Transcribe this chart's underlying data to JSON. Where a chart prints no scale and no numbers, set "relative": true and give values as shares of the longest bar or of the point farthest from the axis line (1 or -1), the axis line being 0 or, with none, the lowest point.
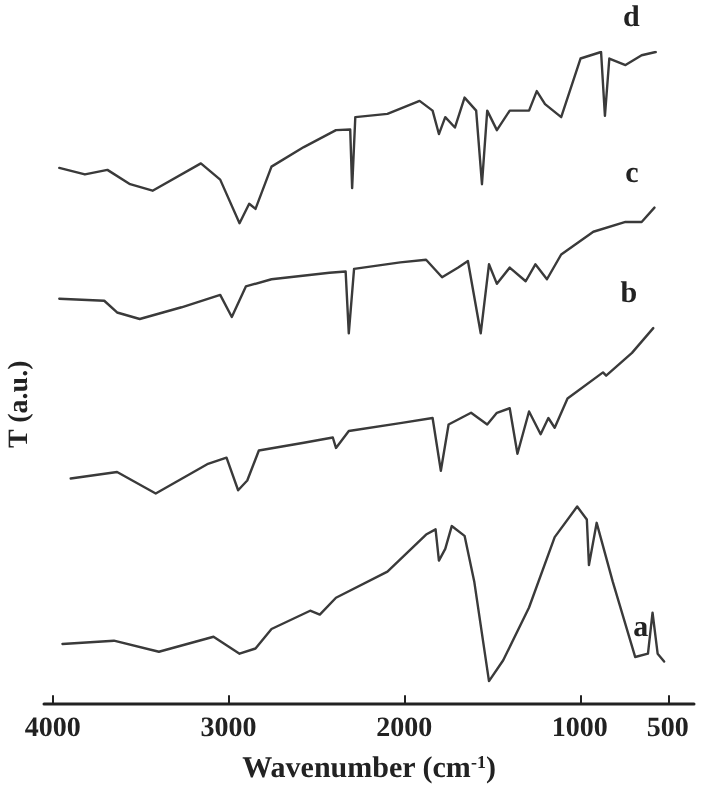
{
  "chart_data": {
    "type": "line",
    "relative": true,
    "xlabel": "Wavenumber (cm$^{-1}$)",
    "ylabel": "T (a.u.)",
    "xlim": [
      4050,
      350
    ],
    "xticks": [
      4000,
      3000,
      2000,
      1000,
      500
    ],
    "marker": "none",
    "line_style": "solid",
    "legend": false,
    "series": [
      {
        "name": "a",
        "color": "#3a3a3a",
        "x": [
          3945,
          3652,
          3396,
          3085,
          2937,
          2846,
          2755,
          2535,
          2480,
          2388,
          2095,
          1875,
          1821,
          1802,
          1766,
          1729,
          1656,
          1601,
          1517,
          1436,
          1289,
          1143,
          1015,
          960,
          948,
          904,
          813,
          685,
          612,
          586,
          557,
          520
        ],
        "values": [
          0.091,
          0.096,
          0.079,
          0.102,
          0.076,
          0.084,
          0.114,
          0.142,
          0.136,
          0.162,
          0.202,
          0.259,
          0.267,
          0.219,
          0.237,
          0.272,
          0.257,
          0.187,
          0.034,
          0.066,
          0.147,
          0.255,
          0.302,
          0.282,
          0.212,
          0.277,
          0.187,
          0.071,
          0.076,
          0.139,
          0.076,
          0.064
        ]
      },
      {
        "name": "b",
        "color": "#3a3a3a",
        "x": [
          3898,
          3634,
          3414,
          3121,
          3011,
          2945,
          2893,
          2827,
          2571,
          2406,
          2388,
          2315,
          2022,
          1838,
          1791,
          1747,
          1619,
          1527,
          1472,
          1399,
          1355,
          1289,
          1223,
          1179,
          1143,
          1070,
          868,
          850,
          703,
          582
        ],
        "values": [
          0.345,
          0.355,
          0.322,
          0.367,
          0.377,
          0.327,
          0.342,
          0.388,
          0.4,
          0.408,
          0.392,
          0.418,
          0.43,
          0.438,
          0.357,
          0.428,
          0.446,
          0.428,
          0.446,
          0.453,
          0.383,
          0.448,
          0.413,
          0.438,
          0.423,
          0.468,
          0.508,
          0.503,
          0.538,
          0.576
        ]
      },
      {
        "name": "c",
        "color": "#3a3a3a",
        "x": [
          3963,
          3707,
          3634,
          3505,
          3267,
          3047,
          2981,
          2901,
          2755,
          2425,
          2333,
          2315,
          2285,
          2022,
          1875,
          1784,
          1692,
          1637,
          1564,
          1517,
          1472,
          1399,
          1308,
          1253,
          1187,
          1106,
          923,
          740,
          648,
          575
        ],
        "values": [
          0.621,
          0.618,
          0.6,
          0.59,
          0.608,
          0.627,
          0.593,
          0.64,
          0.651,
          0.661,
          0.663,
          0.568,
          0.667,
          0.677,
          0.681,
          0.654,
          0.669,
          0.679,
          0.568,
          0.674,
          0.644,
          0.669,
          0.648,
          0.674,
          0.651,
          0.689,
          0.724,
          0.739,
          0.739,
          0.761
        ]
      },
      {
        "name": "d",
        "color": "#3a3a3a",
        "x": [
          3963,
          3817,
          3689,
          3560,
          3432,
          3157,
          3047,
          2937,
          2882,
          2846,
          2755,
          2571,
          2388,
          2307,
          2296,
          2278,
          2095,
          1912,
          1838,
          1802,
          1766,
          1711,
          1656,
          1590,
          1557,
          1527,
          1472,
          1399,
          1289,
          1245,
          1198,
          1106,
          996,
          879,
          857,
          832,
          740,
          648,
          568
        ],
        "values": [
          0.822,
          0.812,
          0.819,
          0.797,
          0.787,
          0.829,
          0.804,
          0.737,
          0.767,
          0.759,
          0.824,
          0.854,
          0.88,
          0.881,
          0.791,
          0.9,
          0.905,
          0.925,
          0.91,
          0.874,
          0.9,
          0.884,
          0.93,
          0.91,
          0.797,
          0.91,
          0.88,
          0.91,
          0.91,
          0.94,
          0.92,
          0.9,
          0.99,
          1.0,
          0.902,
          0.99,
          0.98,
          0.995,
          1.0
        ]
      }
    ]
  }
}
